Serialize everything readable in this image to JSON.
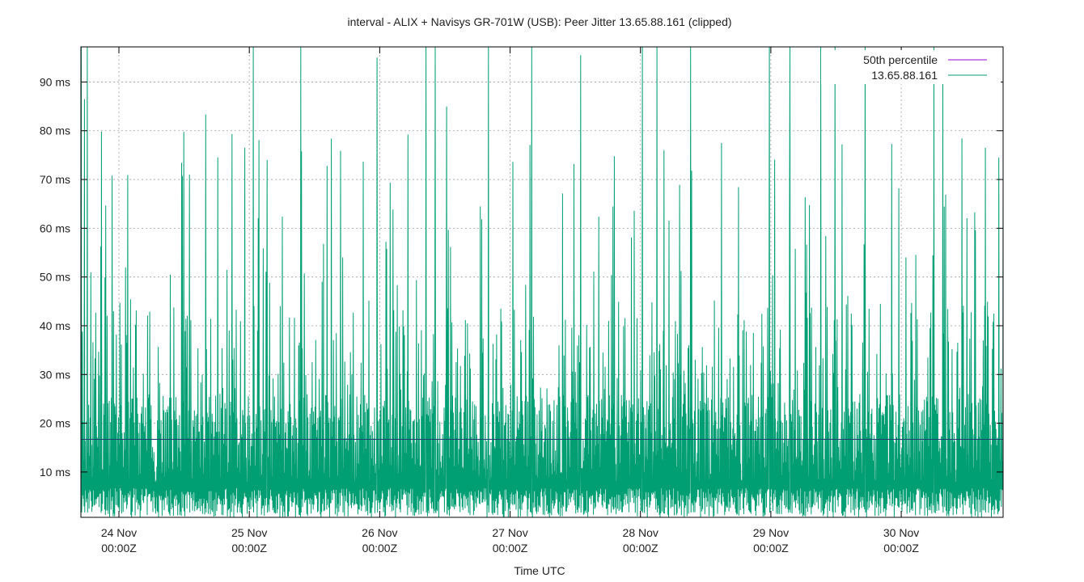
{
  "chart_data": {
    "type": "line",
    "title": "interval - ALIX + Navisys GR-701W (USB): Peer Jitter 13.65.88.161 (clipped)",
    "xlabel": "Time UTC",
    "ylabel": "",
    "x_start": "2017-11-23T17:00:00Z",
    "x_end": "2017-11-30T18:45:00Z",
    "ylim": [
      0.7,
      97.2
    ],
    "yunit": "ms",
    "yticks": [
      {
        "value": 10,
        "label": "10 ms"
      },
      {
        "value": 20,
        "label": "20 ms"
      },
      {
        "value": 30,
        "label": "30 ms"
      },
      {
        "value": 40,
        "label": "40 ms"
      },
      {
        "value": 50,
        "label": "50 ms"
      },
      {
        "value": 60,
        "label": "60 ms"
      },
      {
        "value": 70,
        "label": "70 ms"
      },
      {
        "value": 80,
        "label": "80 ms"
      },
      {
        "value": 90,
        "label": "90 ms"
      }
    ],
    "xticks": [
      {
        "value": "2017-11-24T00:00:00Z",
        "day": "24 Nov",
        "time": "00:00Z"
      },
      {
        "value": "2017-11-25T00:00:00Z",
        "day": "25 Nov",
        "time": "00:00Z"
      },
      {
        "value": "2017-11-26T00:00:00Z",
        "day": "26 Nov",
        "time": "00:00Z"
      },
      {
        "value": "2017-11-27T00:00:00Z",
        "day": "27 Nov",
        "time": "00:00Z"
      },
      {
        "value": "2017-11-28T00:00:00Z",
        "day": "28 Nov",
        "time": "00:00Z"
      },
      {
        "value": "2017-11-29T00:00:00Z",
        "day": "29 Nov",
        "time": "00:00Z"
      },
      {
        "value": "2017-11-30T00:00:00Z",
        "day": "30 Nov",
        "time": "00:00Z"
      }
    ],
    "grid": true,
    "legend_position": "top-right",
    "series": [
      {
        "name": "50th percentile",
        "color": "#9400d3",
        "kind": "constant",
        "value": 16.7
      },
      {
        "name": "13.65.88.161",
        "color": "#009e73",
        "kind": "dense-line",
        "peaks": [
          {
            "x": "2017-11-23T17:05:00Z",
            "y": 97.2
          },
          {
            "x": "2017-11-23T17:40:00Z",
            "y": 86.5
          },
          {
            "x": "2017-11-23T18:10:00Z",
            "y": 97.2
          },
          {
            "x": "2017-11-24T13:00:00Z",
            "y": 71.0
          },
          {
            "x": "2017-11-24T16:00:00Z",
            "y": 83.3
          },
          {
            "x": "2017-11-25T00:45:00Z",
            "y": 97.2
          },
          {
            "x": "2017-11-25T03:15:00Z",
            "y": 74.0
          },
          {
            "x": "2017-11-25T09:30:00Z",
            "y": 97.2
          },
          {
            "x": "2017-11-25T17:10:00Z",
            "y": 54.0
          },
          {
            "x": "2017-11-25T23:30:00Z",
            "y": 95.0
          },
          {
            "x": "2017-11-26T08:30:00Z",
            "y": 97.2
          },
          {
            "x": "2017-11-26T10:15:00Z",
            "y": 97.2
          },
          {
            "x": "2017-11-26T20:00:00Z",
            "y": 97.2
          },
          {
            "x": "2017-11-26T12:20:00Z",
            "y": 85.0
          },
          {
            "x": "2017-11-27T04:00:00Z",
            "y": 97.2
          },
          {
            "x": "2017-11-27T13:00:00Z",
            "y": 95.5
          },
          {
            "x": "2017-11-28T00:20:00Z",
            "y": 97.2
          },
          {
            "x": "2017-11-28T03:00:00Z",
            "y": 97.2
          },
          {
            "x": "2017-11-28T09:15:00Z",
            "y": 97.2
          },
          {
            "x": "2017-11-28T23:45:00Z",
            "y": 97.2
          },
          {
            "x": "2017-11-29T03:30:00Z",
            "y": 97.2
          },
          {
            "x": "2017-11-29T09:10:00Z",
            "y": 97.2
          },
          {
            "x": "2017-11-29T11:50:00Z",
            "y": 97.2
          },
          {
            "x": "2017-11-29T17:20:00Z",
            "y": 97.2
          },
          {
            "x": "2017-11-30T06:00:00Z",
            "y": 97.2
          },
          {
            "x": "2017-11-30T07:40:00Z",
            "y": 92.0
          },
          {
            "x": "2017-11-30T15:30:00Z",
            "y": 76.5
          }
        ]
      }
    ]
  }
}
